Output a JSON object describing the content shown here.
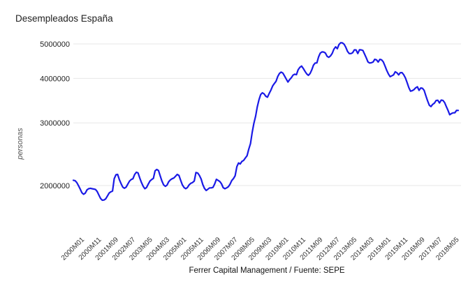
{
  "page": {
    "background_color": "#ffffff"
  },
  "chart_data": {
    "type": "line",
    "title": "Desempleados España",
    "xlabel": "",
    "ylabel": "personas",
    "source_caption": "Ferrer Capital Management / Fuente: SEPE",
    "series_name": "Desempleados",
    "line_color": "#1a1ae6",
    "grid_color": "#e7e7e7",
    "y_scale": "log",
    "ylim": [
      1790000,
      5150000
    ],
    "grid": "horizontal-only",
    "legend_position": "none",
    "y_ticks": [
      {
        "label": "5000000",
        "value": 5000000
      },
      {
        "label": "4000000",
        "value": 4000000
      },
      {
        "label": "3000000",
        "value": 3000000
      },
      {
        "label": "2000000",
        "value": 2000000
      }
    ],
    "x_tick_labels": [
      "2000M01",
      "2000M11",
      "2001M09",
      "2002M07",
      "2003M05",
      "2004M03",
      "2005M01",
      "2005M11",
      "2006M09",
      "2007M07",
      "2008M05",
      "2009M03",
      "2010M01",
      "2010M11",
      "2011M09",
      "2012M07",
      "2013M05",
      "2014M03",
      "2015M01",
      "2015M11",
      "2016M09",
      "2017M07",
      "2018M05"
    ],
    "x_tick_interval_months": 10,
    "x_start": "2000M01",
    "x_end": "2018M11",
    "frequency": "monthly",
    "values": [
      2070000,
      2065000,
      2040000,
      2000000,
      1955000,
      1910000,
      1890000,
      1905000,
      1945000,
      1960000,
      1965000,
      1960000,
      1955000,
      1950000,
      1925000,
      1880000,
      1840000,
      1819000,
      1822000,
      1835000,
      1870000,
      1905000,
      1920000,
      1930000,
      2090000,
      2145000,
      2150000,
      2080000,
      2025000,
      1980000,
      1965000,
      1980000,
      2020000,
      2060000,
      2080000,
      2090000,
      2150000,
      2180000,
      2170000,
      2100000,
      2040000,
      1990000,
      1960000,
      1975000,
      2020000,
      2060000,
      2080000,
      2095000,
      2200000,
      2220000,
      2205000,
      2130000,
      2060000,
      2010000,
      1990000,
      2005000,
      2050000,
      2075000,
      2090000,
      2100000,
      2125000,
      2150000,
      2135000,
      2070000,
      2010000,
      1975000,
      1960000,
      1975000,
      2010000,
      2030000,
      2040000,
      2060000,
      2176000,
      2169000,
      2136000,
      2088000,
      2014000,
      1964000,
      1938000,
      1954000,
      1970000,
      1970000,
      1977000,
      2023000,
      2083000,
      2068000,
      2053000,
      2023000,
      1973000,
      1960000,
      1970000,
      1985000,
      2017000,
      2065000,
      2092000,
      2130000,
      2261000,
      2315000,
      2300000,
      2339000,
      2354000,
      2390000,
      2426000,
      2530000,
      2625000,
      2818000,
      2989000,
      3129000,
      3328000,
      3482000,
      3605000,
      3645000,
      3620000,
      3564000,
      3544000,
      3630000,
      3709000,
      3809000,
      3869000,
      3924000,
      4049000,
      4130000,
      4166000,
      4142000,
      4066000,
      3982000,
      3908000,
      3970000,
      4018000,
      4086000,
      4110000,
      4100000,
      4231000,
      4299000,
      4334000,
      4269000,
      4190000,
      4122000,
      4080000,
      4130000,
      4227000,
      4360000,
      4420000,
      4422000,
      4600000,
      4712000,
      4750000,
      4744000,
      4714000,
      4615000,
      4587000,
      4626000,
      4705000,
      4834000,
      4908000,
      4848000,
      4981000,
      5040000,
      5035000,
      4989000,
      4891000,
      4764000,
      4699000,
      4699000,
      4724000,
      4811000,
      4809000,
      4701000,
      4814000,
      4812000,
      4795000,
      4684000,
      4572000,
      4450000,
      4420000,
      4428000,
      4448000,
      4527000,
      4512000,
      4448000,
      4526000,
      4512000,
      4452000,
      4333000,
      4215000,
      4120000,
      4046000,
      4068000,
      4094000,
      4176000,
      4149000,
      4094000,
      4151000,
      4153000,
      4095000,
      4011000,
      3891000,
      3767000,
      3683000,
      3697000,
      3720000,
      3765000,
      3789000,
      3703000,
      3761000,
      3753000,
      3702000,
      3573000,
      3461000,
      3362000,
      3336000,
      3382000,
      3410000,
      3467000,
      3474000,
      3413000,
      3476000,
      3470000,
      3422000,
      3336000,
      3252000,
      3162000,
      3186000,
      3203000,
      3203000,
      3254000,
      3252000
    ]
  }
}
